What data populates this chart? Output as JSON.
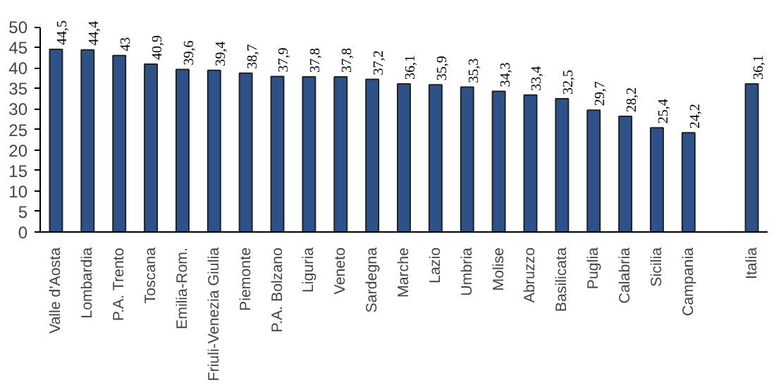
{
  "chart_data": {
    "type": "bar",
    "categories": [
      "Valle d'Aosta",
      "Lombardia",
      "P.A. Trento",
      "Toscana",
      "Emilia-Rom.",
      "Friuli-Venezia Giulia",
      "Piemonte",
      "P.A. Bolzano",
      "Liguria",
      "Veneto",
      "Sardegna",
      "Marche",
      "Lazio",
      "Umbria",
      "Molise",
      "Abruzzo",
      "Basilicata",
      "Puglia",
      "Calabria",
      "Sicilia",
      "Campania",
      null,
      "Italia"
    ],
    "values": [
      44.5,
      44.4,
      43,
      40.9,
      39.6,
      39.4,
      38.7,
      37.9,
      37.8,
      37.8,
      37.2,
      36.1,
      35.9,
      35.3,
      34.3,
      33.4,
      32.5,
      29.7,
      28.2,
      25.4,
      24.2,
      null,
      36.1
    ],
    "value_labels": [
      "44,5",
      "44,4",
      "43",
      "40,9",
      "39,6",
      "39,4",
      "38,7",
      "37,9",
      "37,8",
      "37,8",
      "37,2",
      "36,1",
      "35,9",
      "35,3",
      "34,3",
      "33,4",
      "32,5",
      "29,7",
      "28,2",
      "25,4",
      "24,2",
      null,
      "36,1"
    ],
    "color": "#2e5288",
    "ylim": [
      0,
      50
    ],
    "yticks": [
      0,
      5,
      10,
      15,
      20,
      25,
      30,
      35,
      40,
      45,
      50
    ],
    "grid": false
  }
}
